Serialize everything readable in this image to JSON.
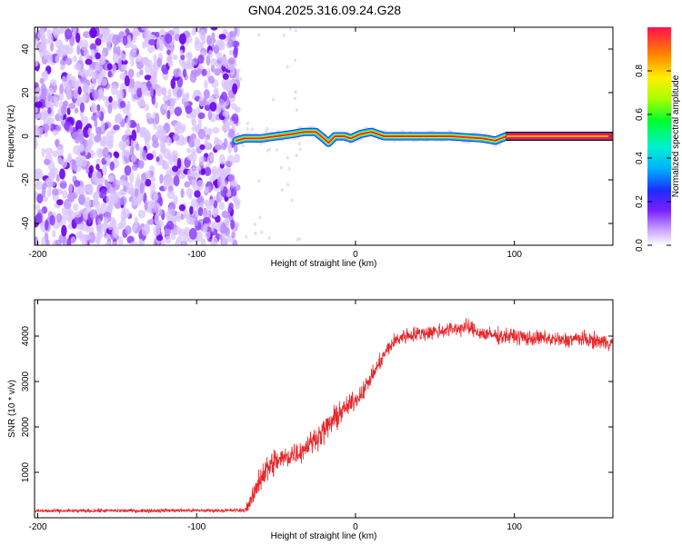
{
  "title": "GN04.2025.316.09.24.G28",
  "chart_data": [
    {
      "type": "heatmap",
      "name": "spectrogram",
      "xlabel": "Height of straight line (km)",
      "ylabel": "Frequency (Hz)",
      "xlim": [
        -202,
        162
      ],
      "ylim": [
        -50,
        50
      ],
      "xticks": [
        -200,
        -100,
        0,
        100
      ],
      "yticks": [
        -40,
        -20,
        0,
        20,
        40
      ],
      "noise_region_x": [
        -202,
        -74
      ],
      "signal_track": [
        {
          "x": -75,
          "f": -2
        },
        {
          "x": -70,
          "f": -1
        },
        {
          "x": -60,
          "f": -1
        },
        {
          "x": -50,
          "f": 0
        },
        {
          "x": -40,
          "f": 1
        },
        {
          "x": -32,
          "f": 2
        },
        {
          "x": -25,
          "f": 2
        },
        {
          "x": -20,
          "f": -1
        },
        {
          "x": -17,
          "f": -3
        },
        {
          "x": -13,
          "f": 0
        },
        {
          "x": -7,
          "f": 0
        },
        {
          "x": -3,
          "f": -1
        },
        {
          "x": 3,
          "f": 1
        },
        {
          "x": 10,
          "f": 2
        },
        {
          "x": 18,
          "f": 0
        },
        {
          "x": 40,
          "f": 0
        },
        {
          "x": 60,
          "f": 0
        },
        {
          "x": 80,
          "f": -1
        },
        {
          "x": 88,
          "f": -2
        },
        {
          "x": 95,
          "f": 0
        },
        {
          "x": 162,
          "f": 0
        }
      ],
      "colorbar": {
        "label": "Normalized spectral amplitude",
        "range": [
          0,
          1
        ],
        "ticks": [
          0.0,
          0.2,
          0.4,
          0.6,
          0.8
        ],
        "tick_labels": [
          "0.0",
          "0.2",
          "0.4",
          "0.6",
          "0.8"
        ]
      }
    },
    {
      "type": "line",
      "name": "snr",
      "xlabel": "Height of straight line (km)",
      "ylabel": "SNR (10 * v/v)",
      "xlim": [
        -202,
        162
      ],
      "ylim": [
        0,
        4800
      ],
      "xticks": [
        -200,
        -100,
        0,
        100
      ],
      "yticks": [
        1000,
        2000,
        3000,
        4000
      ],
      "line_color": "#e8262a",
      "series": [
        {
          "name": "SNR",
          "x": [
            -202,
            -180,
            -160,
            -140,
            -120,
            -100,
            -80,
            -70,
            -65,
            -60,
            -55,
            -50,
            -45,
            -40,
            -35,
            -30,
            -25,
            -20,
            -15,
            -10,
            -5,
            0,
            5,
            10,
            15,
            20,
            25,
            30,
            40,
            50,
            60,
            70,
            80,
            90,
            100,
            110,
            120,
            130,
            140,
            150,
            162
          ],
          "y": [
            150,
            150,
            155,
            155,
            160,
            160,
            160,
            165,
            400,
            900,
            1100,
            1250,
            1300,
            1400,
            1450,
            1600,
            1750,
            1900,
            2100,
            2300,
            2450,
            2600,
            2800,
            3100,
            3400,
            3700,
            3900,
            4000,
            4050,
            4100,
            4150,
            4200,
            4050,
            4000,
            4000,
            3950,
            3950,
            3900,
            3950,
            3900,
            3850
          ],
          "noise_amplitude": [
            60,
            60,
            60,
            60,
            60,
            60,
            60,
            60,
            300,
            450,
            500,
            450,
            400,
            400,
            350,
            350,
            350,
            400,
            450,
            400,
            300,
            300,
            300,
            250,
            250,
            250,
            250,
            250,
            250,
            250,
            250,
            250,
            250,
            250,
            250,
            250,
            250,
            250,
            250,
            250,
            250
          ]
        }
      ]
    }
  ]
}
